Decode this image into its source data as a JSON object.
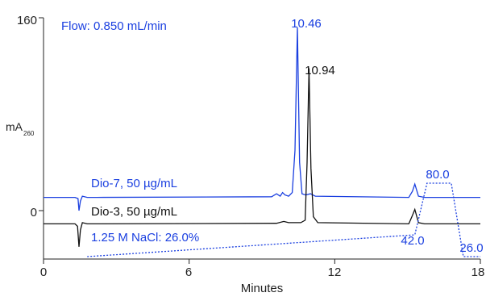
{
  "chart_data": {
    "type": "line",
    "xlabel": "Minutes",
    "ylabel": "mA",
    "ylabel_sub": "260",
    "xlim": [
      0,
      18
    ],
    "ylim": [
      -42,
      160
    ],
    "x_ticks": [
      0,
      6,
      12,
      18
    ],
    "y_ticks": [
      0,
      160
    ],
    "annotations": {
      "flow": "Flow: 0.850 mL/min",
      "gradient": "1.25 M NaCl: 26.0%",
      "peak_labels": [
        "10.46",
        "10.94"
      ],
      "gradient_labels": [
        "42.0",
        "80.0",
        "26.0"
      ]
    },
    "colors": {
      "blue": "#1a3fe0",
      "black": "#111111",
      "axis": "#222222"
    },
    "series": [
      {
        "name": "Dio-7, 50 µg/mL",
        "color": "#1a3fe0",
        "baseline": 11,
        "x": [
          0,
          1.3,
          1.42,
          1.46,
          1.52,
          1.6,
          1.8,
          2.2,
          9.4,
          9.6,
          9.75,
          9.85,
          9.95,
          10.1,
          10.25,
          10.36,
          10.46,
          10.55,
          10.65,
          10.8,
          11.0,
          11.2,
          15.05,
          15.2,
          15.3,
          15.45,
          15.7,
          18
        ],
        "y": [
          11,
          11,
          10,
          0,
          8,
          12,
          11,
          11,
          11.5,
          14,
          12,
          15,
          13,
          12,
          15,
          50,
          152,
          40,
          14,
          13,
          14,
          12,
          11,
          16,
          22,
          12,
          11,
          11
        ]
      },
      {
        "name": "Dio-3, 50 µg/mL",
        "color": "#111111",
        "baseline": -11,
        "x": [
          0,
          1.3,
          1.4,
          1.46,
          1.52,
          1.6,
          1.8,
          2.2,
          9.6,
          9.9,
          10.1,
          10.6,
          10.78,
          10.86,
          10.94,
          11.02,
          11.12,
          11.3,
          15.05,
          15.2,
          15.3,
          15.45,
          15.7,
          18
        ],
        "y": [
          -11,
          -11,
          -13,
          -30,
          -16,
          -10,
          -11,
          -11,
          -10.5,
          -9,
          -10,
          -10,
          -8,
          40,
          118,
          35,
          -5,
          -10,
          -11,
          -4,
          1,
          -10,
          -11,
          -11
        ]
      }
    ],
    "gradient": {
      "name": "1.25 M NaCl",
      "color": "#1a3fe0",
      "x": [
        1.8,
        15.3,
        15.8,
        16.8,
        17.3,
        18
      ],
      "percent": [
        26.0,
        42.0,
        80.0,
        80.0,
        26.0,
        26.0
      ]
    }
  }
}
